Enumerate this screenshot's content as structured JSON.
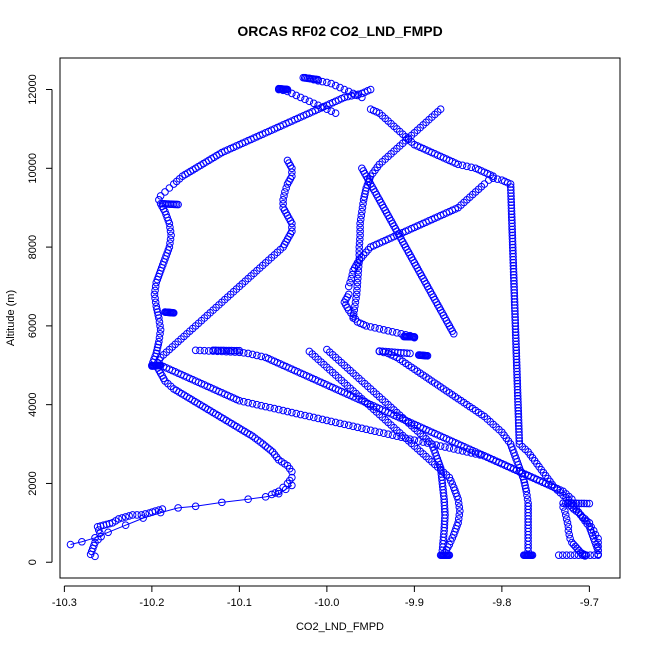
{
  "chart_data": {
    "type": "scatter",
    "title": "ORCAS RF02 CO2_LND_FMPD",
    "xlabel": "CO2_LND_FMPD",
    "ylabel": "Altitude (m)",
    "xlim": [
      -10.305,
      -9.665
    ],
    "ylim": [
      -400,
      12800
    ],
    "x_ticks": [
      -10.3,
      -10.2,
      -10.1,
      -10.0,
      -9.9,
      -9.8,
      -9.7
    ],
    "x_tick_labels": [
      "-10.3",
      "-10.2",
      "-10.1",
      "-10.0",
      "-9.9",
      "-9.8",
      "-9.7"
    ],
    "y_ticks": [
      0,
      2000,
      4000,
      6000,
      8000,
      10000,
      12000
    ],
    "y_tick_labels": [
      "0",
      "2000",
      "4000",
      "6000",
      "8000",
      "10000",
      "12000"
    ],
    "marker": "open-circle",
    "color": "#0000ff",
    "grid": false,
    "series": [
      {
        "style": "points",
        "x": [
          -10.265,
          -10.27,
          -10.265,
          -10.258,
          -10.262,
          -10.245,
          -10.238,
          -10.222,
          -10.212,
          -10.203,
          -10.196,
          -10.188
        ],
        "y": [
          150,
          200,
          500,
          650,
          900,
          1000,
          1100,
          1200,
          1200,
          1250,
          1300,
          1350
        ]
      },
      {
        "style": "line",
        "x": [
          -10.293,
          -10.28,
          -10.265,
          -10.25,
          -10.23,
          -10.21,
          -10.19,
          -10.17,
          -10.15,
          -10.12,
          -10.09,
          -10.07,
          -10.055,
          -10.047,
          -10.04
        ],
        "y": [
          450,
          520,
          620,
          760,
          940,
          1120,
          1260,
          1380,
          1420,
          1520,
          1600,
          1660,
          1740,
          1850,
          1950
        ]
      },
      {
        "style": "points",
        "x": [
          -10.063,
          -10.055,
          -10.05,
          -10.045,
          -10.04,
          -10.04,
          -10.045,
          -10.055,
          -10.062,
          -10.073,
          -10.085,
          -10.1,
          -10.115,
          -10.13,
          -10.145,
          -10.16,
          -10.175,
          -10.185,
          -10.19,
          -10.195,
          -10.19,
          -10.18,
          -10.17,
          -10.16,
          -10.15,
          -10.14,
          -10.13,
          -10.12,
          -10.11,
          -10.1,
          -10.09,
          -10.08,
          -10.07,
          -10.06,
          -10.05,
          -10.045,
          -10.04,
          -10.04,
          -10.045,
          -10.05,
          -10.05,
          -10.048,
          -10.045,
          -10.04,
          -10.04,
          -10.045
        ],
        "y": [
          1720,
          1800,
          1900,
          2000,
          2150,
          2300,
          2450,
          2600,
          2800,
          3000,
          3200,
          3400,
          3600,
          3800,
          4000,
          4200,
          4400,
          4600,
          4800,
          5000,
          5200,
          5400,
          5600,
          5800,
          6000,
          6200,
          6400,
          6600,
          6800,
          7000,
          7200,
          7400,
          7600,
          7800,
          8000,
          8200,
          8400,
          8600,
          8800,
          9000,
          9200,
          9400,
          9600,
          9800,
          10000,
          10200
        ]
      },
      {
        "style": "points",
        "x": [
          -10.2,
          -10.195,
          -10.192,
          -10.19,
          -10.192,
          -10.195,
          -10.197,
          -10.195,
          -10.19,
          -10.185,
          -10.18,
          -10.178,
          -10.18,
          -10.185,
          -10.19,
          -10.192,
          -10.19,
          -10.185,
          -10.18,
          -10.175,
          -10.165,
          -10.15,
          -10.135,
          -10.12,
          -10.1,
          -10.08,
          -10.06,
          -10.04,
          -10.02,
          -10.0,
          -9.98,
          -9.96,
          -9.95
        ],
        "y": [
          5000,
          5300,
          5600,
          5900,
          6200,
          6500,
          6800,
          7100,
          7400,
          7700,
          8000,
          8300,
          8600,
          8900,
          9100,
          9200,
          9300,
          9400,
          9500,
          9600,
          9800,
          10000,
          10200,
          10400,
          10600,
          10800,
          11000,
          11200,
          11400,
          11600,
          11800,
          11900,
          12000
        ]
      },
      {
        "style": "points",
        "x": [
          -10.19,
          -10.18,
          -10.17,
          -10.16,
          -10.15,
          -10.14,
          -10.13,
          -10.12,
          -10.11,
          -10.1,
          -10.09,
          -10.08,
          -10.07,
          -10.06,
          -10.05,
          -10.04,
          -10.03,
          -10.02,
          -10.01,
          -10.0,
          -9.99,
          -9.98,
          -9.97,
          -9.96,
          -9.95,
          -9.94,
          -9.93,
          -9.92,
          -9.91,
          -9.9,
          -9.89,
          -9.88,
          -9.87,
          -9.86,
          -9.85,
          -9.84,
          -9.83,
          -9.82,
          -9.81,
          -9.8,
          -9.79,
          -9.78,
          -9.77,
          -9.76,
          -9.75,
          -9.74,
          -9.73,
          -9.72
        ],
        "y": [
          5000,
          4900,
          4800,
          4700,
          4600,
          4500,
          4400,
          4300,
          4200,
          4100,
          4050,
          4000,
          3950,
          3900,
          3850,
          3800,
          3750,
          3700,
          3650,
          3600,
          3550,
          3500,
          3450,
          3400,
          3350,
          3300,
          3250,
          3200,
          3150,
          3100,
          3050,
          3000,
          2950,
          2900,
          2850,
          2800,
          2750,
          2700,
          2600,
          2500,
          2400,
          2300,
          2200,
          2100,
          2000,
          1900,
          1800,
          1600
        ]
      },
      {
        "style": "points",
        "x": [
          -10.15,
          -10.14,
          -10.13,
          -10.12,
          -10.11,
          -10.1,
          -10.09,
          -10.08,
          -10.07,
          -10.06,
          -10.05,
          -10.04,
          -10.03,
          -10.02,
          -10.01,
          -10.0,
          -9.99,
          -9.98,
          -9.97,
          -9.96,
          -9.95,
          -9.94,
          -9.93,
          -9.92,
          -9.91,
          -9.9,
          -9.89,
          -9.88,
          -9.87,
          -9.86,
          -9.85,
          -9.84,
          -9.83,
          -9.82,
          -9.81,
          -9.8,
          -9.79,
          -9.78,
          -9.77,
          -9.76,
          -9.75,
          -9.74
        ],
        "y": [
          5380,
          5370,
          5360,
          5350,
          5340,
          5330,
          5300,
          5250,
          5200,
          5100,
          5000,
          4900,
          4800,
          4700,
          4600,
          4500,
          4400,
          4300,
          4200,
          4100,
          4000,
          3900,
          3800,
          3700,
          3600,
          3500,
          3400,
          3300,
          3200,
          3100,
          3000,
          2900,
          2800,
          2700,
          2600,
          2500,
          2400,
          2300,
          2200,
          2100,
          2000,
          1900
        ]
      },
      {
        "style": "points",
        "x": [
          -10.0,
          -9.99,
          -9.98,
          -9.97,
          -9.96,
          -9.95,
          -9.94,
          -9.93,
          -9.92,
          -9.91,
          -9.9,
          -9.89,
          -9.88,
          -9.875,
          -9.87,
          -9.868,
          -9.866,
          -9.865,
          -9.866,
          -9.868
        ],
        "y": [
          5400,
          5200,
          5000,
          4800,
          4600,
          4400,
          4200,
          4000,
          3800,
          3600,
          3400,
          3200,
          3000,
          2700,
          2400,
          2000,
          1600,
          1200,
          800,
          300
        ]
      },
      {
        "style": "points",
        "x": [
          -10.02,
          -10.01,
          -10.0,
          -9.99,
          -9.98,
          -9.97,
          -9.96,
          -9.95,
          -9.94,
          -9.93,
          -9.92,
          -9.91,
          -9.9,
          -9.89,
          -9.88,
          -9.87,
          -9.86,
          -9.855,
          -9.85,
          -9.848,
          -9.85,
          -9.855,
          -9.86,
          -9.865
        ],
        "y": [
          5350,
          5150,
          4950,
          4750,
          4550,
          4350,
          4150,
          3950,
          3750,
          3550,
          3350,
          3150,
          2950,
          2750,
          2550,
          2350,
          2150,
          1900,
          1600,
          1300,
          1000,
          700,
          450,
          250
        ]
      },
      {
        "style": "points",
        "x": [
          -9.94,
          -9.93,
          -9.92,
          -9.91,
          -9.9,
          -9.89,
          -9.88,
          -9.87,
          -9.86,
          -9.85,
          -9.84,
          -9.83,
          -9.82,
          -9.81,
          -9.8,
          -9.79,
          -9.785,
          -9.78,
          -9.775,
          -9.772,
          -9.77,
          -9.77,
          -9.77,
          -9.77
        ],
        "y": [
          5350,
          5300,
          5200,
          5050,
          4900,
          4750,
          4600,
          4450,
          4300,
          4150,
          4000,
          3850,
          3700,
          3500,
          3300,
          3000,
          2700,
          2400,
          2100,
          1800,
          1500,
          1100,
          700,
          200
        ]
      },
      {
        "style": "points",
        "x": [
          -9.975,
          -9.98,
          -9.975,
          -9.97,
          -9.965,
          -9.955,
          -9.945,
          -9.935,
          -9.925,
          -9.915,
          -9.905,
          -9.9,
          -9.9
        ],
        "y": [
          6800,
          6600,
          6400,
          6250,
          6100,
          6000,
          5950,
          5900,
          5850,
          5800,
          5750,
          5720,
          5700
        ]
      },
      {
        "style": "points",
        "x": [
          -9.975,
          -9.972,
          -9.97,
          -9.965,
          -9.958,
          -9.95,
          -9.94,
          -9.93,
          -9.92,
          -9.91,
          -9.9,
          -9.89,
          -9.88,
          -9.87,
          -9.86,
          -9.85,
          -9.84,
          -9.83,
          -9.82,
          -9.815,
          -9.81,
          -9.8,
          -9.79,
          -9.78,
          -9.77,
          -9.76,
          -9.75,
          -9.74,
          -9.73,
          -9.72,
          -9.71,
          -9.7,
          -9.695,
          -9.69,
          -9.69
        ],
        "y": [
          7000,
          7200,
          7400,
          7600,
          7800,
          8000,
          8100,
          8200,
          8300,
          8400,
          8500,
          8600,
          8700,
          8800,
          8900,
          9000,
          9200,
          9400,
          9600,
          9700,
          9750,
          9700,
          9600,
          3000,
          2800,
          2500,
          2200,
          1900,
          1700,
          1500,
          1200,
          900,
          600,
          300,
          200
        ]
      },
      {
        "style": "points",
        "x": [
          -9.97,
          -9.968,
          -9.966,
          -9.965,
          -9.964,
          -9.963,
          -9.963,
          -9.962,
          -9.962,
          -9.96,
          -9.958,
          -9.955,
          -9.95,
          -9.94,
          -9.93,
          -9.92,
          -9.91,
          -9.9,
          -9.89,
          -9.88,
          -9.87
        ],
        "y": [
          6200,
          6500,
          6800,
          7100,
          7400,
          7700,
          8000,
          8300,
          8600,
          8900,
          9200,
          9500,
          9800,
          10100,
          10300,
          10500,
          10700,
          10900,
          11100,
          11300,
          11500
        ]
      },
      {
        "style": "points",
        "x": [
          -9.96,
          -9.955,
          -9.95,
          -9.945,
          -9.94,
          -9.935,
          -9.93,
          -9.925,
          -9.92,
          -9.915,
          -9.91,
          -9.905,
          -9.9,
          -9.895,
          -9.89,
          -9.885,
          -9.88,
          -9.875,
          -9.87,
          -9.865,
          -9.86,
          -9.855
        ],
        "y": [
          10000,
          9800,
          9600,
          9400,
          9200,
          9000,
          8800,
          8600,
          8400,
          8200,
          8000,
          7800,
          7600,
          7400,
          7200,
          7000,
          6800,
          6600,
          6400,
          6200,
          6000,
          5800
        ]
      },
      {
        "style": "points",
        "x": [
          -9.95,
          -9.94,
          -9.93,
          -9.92,
          -9.91,
          -9.9,
          -9.89,
          -9.88,
          -9.87,
          -9.86,
          -9.85,
          -9.84,
          -9.83,
          -9.82,
          -9.81
        ],
        "y": [
          11500,
          11400,
          11200,
          11000,
          10800,
          10600,
          10500,
          10400,
          10300,
          10200,
          10100,
          10050,
          10000,
          9900,
          9800
        ]
      },
      {
        "style": "points",
        "x": [
          -10.055,
          -10.05,
          -10.045,
          -10.04,
          -10.035,
          -10.03,
          -10.025,
          -10.02,
          -10.015,
          -10.01,
          -10.005,
          -10.0,
          -9.995,
          -9.99
        ],
        "y": [
          12000,
          11980,
          11950,
          11900,
          11850,
          11800,
          11750,
          11700,
          11650,
          11600,
          11550,
          11500,
          11450,
          11400
        ]
      },
      {
        "style": "points",
        "x": [
          -10.025,
          -10.02,
          -10.015,
          -10.01,
          -10.005,
          -10.0,
          -9.995,
          -9.99,
          -9.985,
          -9.98,
          -9.975,
          -9.97,
          -9.965,
          -9.96
        ],
        "y": [
          12300,
          12280,
          12250,
          12220,
          12200,
          12180,
          12150,
          12100,
          12050,
          12000,
          11950,
          11900,
          11850,
          11800
        ]
      },
      {
        "style": "points",
        "x": [
          -9.725,
          -9.722,
          -9.72,
          -9.718,
          -9.715,
          -9.712,
          -9.71,
          -9.708,
          -9.705,
          -9.703,
          -9.7,
          -9.698,
          -9.695,
          -9.693,
          -9.69,
          -9.69,
          -9.69,
          -9.69,
          -9.69
        ],
        "y": [
          1500,
          1450,
          1400,
          1350,
          1300,
          1250,
          1200,
          1150,
          1100,
          1050,
          1000,
          900,
          800,
          700,
          600,
          500,
          400,
          300,
          200
        ]
      },
      {
        "style": "points",
        "x": [
          -9.73,
          -9.73,
          -9.728,
          -9.727,
          -9.726,
          -9.725,
          -9.724,
          -9.724,
          -9.723,
          -9.722,
          -9.72,
          -9.718,
          -9.716,
          -9.714,
          -9.712,
          -9.71,
          -9.708,
          -9.706,
          -9.705,
          -9.705
        ],
        "y": [
          1500,
          1400,
          1300,
          1200,
          1100,
          1000,
          900,
          800,
          700,
          600,
          500,
          450,
          400,
          350,
          300,
          250,
          220,
          200,
          180,
          160
        ]
      }
    ],
    "clusters": [
      {
        "x": [
          -10.188,
          -10.17
        ],
        "y": [
          9100,
          9080
        ]
      },
      {
        "x": [
          -10.185,
          -10.175
        ],
        "y": [
          6350,
          6330
        ]
      },
      {
        "x": [
          -10.13,
          -10.1
        ],
        "y": [
          5380,
          5370
        ]
      },
      {
        "x": [
          -10.2,
          -10.19
        ],
        "y": [
          4980,
          5000
        ]
      },
      {
        "x": [
          -10.055,
          -10.045
        ],
        "y": [
          12020,
          12000
        ]
      },
      {
        "x": [
          -10.027,
          -10.01
        ],
        "y": [
          12300,
          12250
        ]
      },
      {
        "x": [
          -9.912,
          -9.9
        ],
        "y": [
          5730,
          5720
        ]
      },
      {
        "x": [
          -9.94,
          -9.905
        ],
        "y": [
          5360,
          5300
        ]
      },
      {
        "x": [
          -9.895,
          -9.885
        ],
        "y": [
          5260,
          5240
        ]
      },
      {
        "x": [
          -9.73,
          -9.7
        ],
        "y": [
          1500,
          1490
        ]
      },
      {
        "x": [
          -9.735,
          -9.69
        ],
        "y": [
          180,
          180
        ]
      },
      {
        "x": [
          -9.775,
          -9.765
        ],
        "y": [
          180,
          180
        ]
      },
      {
        "x": [
          -9.87,
          -9.86
        ],
        "y": [
          180,
          180
        ]
      }
    ]
  }
}
